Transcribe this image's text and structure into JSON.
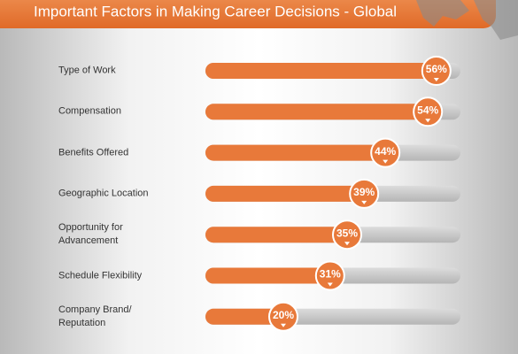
{
  "chart_data": {
    "type": "bar",
    "orientation": "horizontal",
    "title": "Important Factors in Making Career Decisions - Global",
    "categories": [
      "Type of Work",
      "Compensation",
      "Benefits Offered",
      "Geographic Location",
      "Opportunity for\nAdvancement",
      "Schedule Flexibility",
      "Company Brand/\nReputation"
    ],
    "values": [
      56,
      54,
      44,
      39,
      35,
      31,
      20
    ],
    "value_labels": [
      "56%",
      "54%",
      "44%",
      "39%",
      "35%",
      "31%",
      "20%"
    ],
    "color": "#e8793a",
    "track_color": "#c9c9c9",
    "xlim": [
      0,
      60
    ]
  }
}
